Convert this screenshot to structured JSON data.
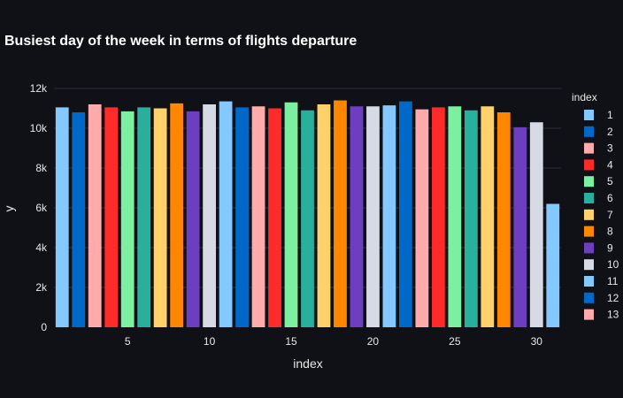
{
  "chart_data": {
    "type": "bar",
    "title": "Busiest day of the week in terms of flights departure",
    "xlabel": "index",
    "ylabel": "y",
    "xlim": [
      0.5,
      31.5
    ],
    "ylim": [
      0,
      12000
    ],
    "x_ticks": [
      5,
      10,
      15,
      20,
      25,
      30
    ],
    "x_tick_labels": [
      "5",
      "10",
      "15",
      "20",
      "25",
      "30"
    ],
    "y_ticks": [
      0,
      2000,
      4000,
      6000,
      8000,
      10000,
      12000
    ],
    "y_tick_labels": [
      "0",
      "2k",
      "4k",
      "6k",
      "8k",
      "10k",
      "12k"
    ],
    "grid": true,
    "legend_title": "index",
    "legend_position": "right",
    "legend": [
      {
        "label": "1",
        "color": "#83c9ff"
      },
      {
        "label": "2",
        "color": "#0068c9"
      },
      {
        "label": "3",
        "color": "#ffabab"
      },
      {
        "label": "4",
        "color": "#ff2b2b"
      },
      {
        "label": "5",
        "color": "#7defa1"
      },
      {
        "label": "6",
        "color": "#29b09d"
      },
      {
        "label": "7",
        "color": "#ffd16a"
      },
      {
        "label": "8",
        "color": "#ff8700"
      },
      {
        "label": "9",
        "color": "#6d3fc0"
      },
      {
        "label": "10",
        "color": "#d5dae5"
      },
      {
        "label": "11",
        "color": "#83c9ff"
      },
      {
        "label": "12",
        "color": "#0068c9"
      },
      {
        "label": "13",
        "color": "#ffabab"
      }
    ],
    "x": [
      1,
      2,
      3,
      4,
      5,
      6,
      7,
      8,
      9,
      10,
      11,
      12,
      13,
      14,
      15,
      16,
      17,
      18,
      19,
      20,
      21,
      22,
      23,
      24,
      25,
      26,
      27,
      28,
      29,
      30,
      31
    ],
    "values": [
      11050,
      10800,
      11200,
      11050,
      10850,
      11050,
      11000,
      11250,
      10850,
      11200,
      11350,
      11050,
      11100,
      11000,
      11300,
      10900,
      11200,
      11400,
      11100,
      11100,
      11150,
      11350,
      10950,
      11050,
      11100,
      10900,
      11100,
      10800,
      10050,
      10300,
      6200
    ],
    "colors": [
      "#83c9ff",
      "#0068c9",
      "#ffabab",
      "#ff2b2b",
      "#7defa1",
      "#29b09d",
      "#ffd16a",
      "#ff8700",
      "#6d3fc0",
      "#d5dae5",
      "#83c9ff",
      "#0068c9",
      "#ffabab",
      "#ff2b2b",
      "#7defa1",
      "#29b09d",
      "#ffd16a",
      "#ff8700",
      "#6d3fc0",
      "#d5dae5",
      "#83c9ff",
      "#0068c9",
      "#ffabab",
      "#ff2b2b",
      "#7defa1",
      "#29b09d",
      "#ffd16a",
      "#ff8700",
      "#6d3fc0",
      "#d5dae5",
      "#83c9ff"
    ]
  }
}
